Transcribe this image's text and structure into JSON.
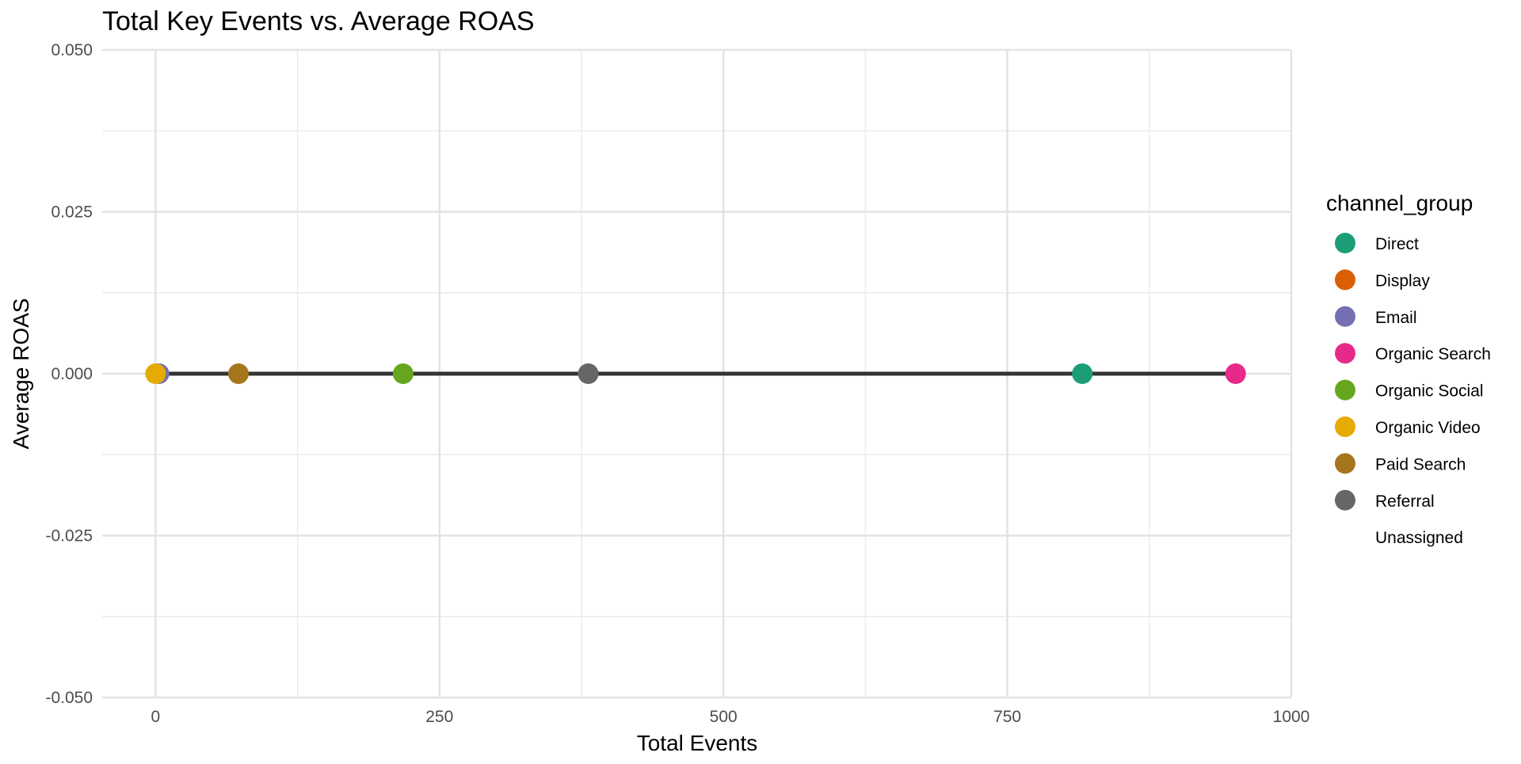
{
  "chart_data": {
    "type": "scatter",
    "title": "Total Key Events vs. Average ROAS",
    "xlabel": "Total Events",
    "ylabel": "Average ROAS",
    "xlim": [
      -47,
      1000
    ],
    "ylim": [
      -0.05,
      0.05
    ],
    "x_ticks": [
      0,
      250,
      500,
      750,
      1000
    ],
    "x_tick_labels": [
      "0",
      "250",
      "500",
      "750",
      "1000"
    ],
    "y_ticks": [
      -0.05,
      -0.025,
      0,
      0.025,
      0.05
    ],
    "y_tick_labels": [
      "-0.050",
      "-0.025",
      "0.000",
      "0.025",
      "0.050"
    ],
    "grid": true,
    "legend": {
      "title": "channel_group",
      "position": "right",
      "entries": [
        {
          "label": "Direct",
          "color": "#1b9e77"
        },
        {
          "label": "Display",
          "color": "#d95f02"
        },
        {
          "label": "Email",
          "color": "#7570b3"
        },
        {
          "label": "Organic Search",
          "color": "#e7298a"
        },
        {
          "label": "Organic Social",
          "color": "#66a61e"
        },
        {
          "label": "Organic Video",
          "color": "#e6ab02"
        },
        {
          "label": "Paid Search",
          "color": "#a6761d"
        },
        {
          "label": "Referral",
          "color": "#666666"
        },
        {
          "label": "Unassigned",
          "color": ""
        }
      ]
    },
    "points": [
      {
        "series": "Email",
        "x": 3,
        "y": 0,
        "color": "#7570b3"
      },
      {
        "series": "Organic Video",
        "x": 0,
        "y": 0,
        "color": "#e6ab02"
      },
      {
        "series": "Paid Search",
        "x": 73,
        "y": 0,
        "color": "#a6761d"
      },
      {
        "series": "Organic Social",
        "x": 218,
        "y": 0,
        "color": "#66a61e"
      },
      {
        "series": "Referral",
        "x": 381,
        "y": 0,
        "color": "#666666"
      },
      {
        "series": "Direct",
        "x": 816,
        "y": 0,
        "color": "#1b9e77"
      },
      {
        "series": "Organic Search",
        "x": 951,
        "y": 0,
        "color": "#e7298a"
      }
    ],
    "trend_line": {
      "x": [
        1,
        951
      ],
      "y": [
        0,
        0
      ],
      "color": "#333333"
    }
  }
}
